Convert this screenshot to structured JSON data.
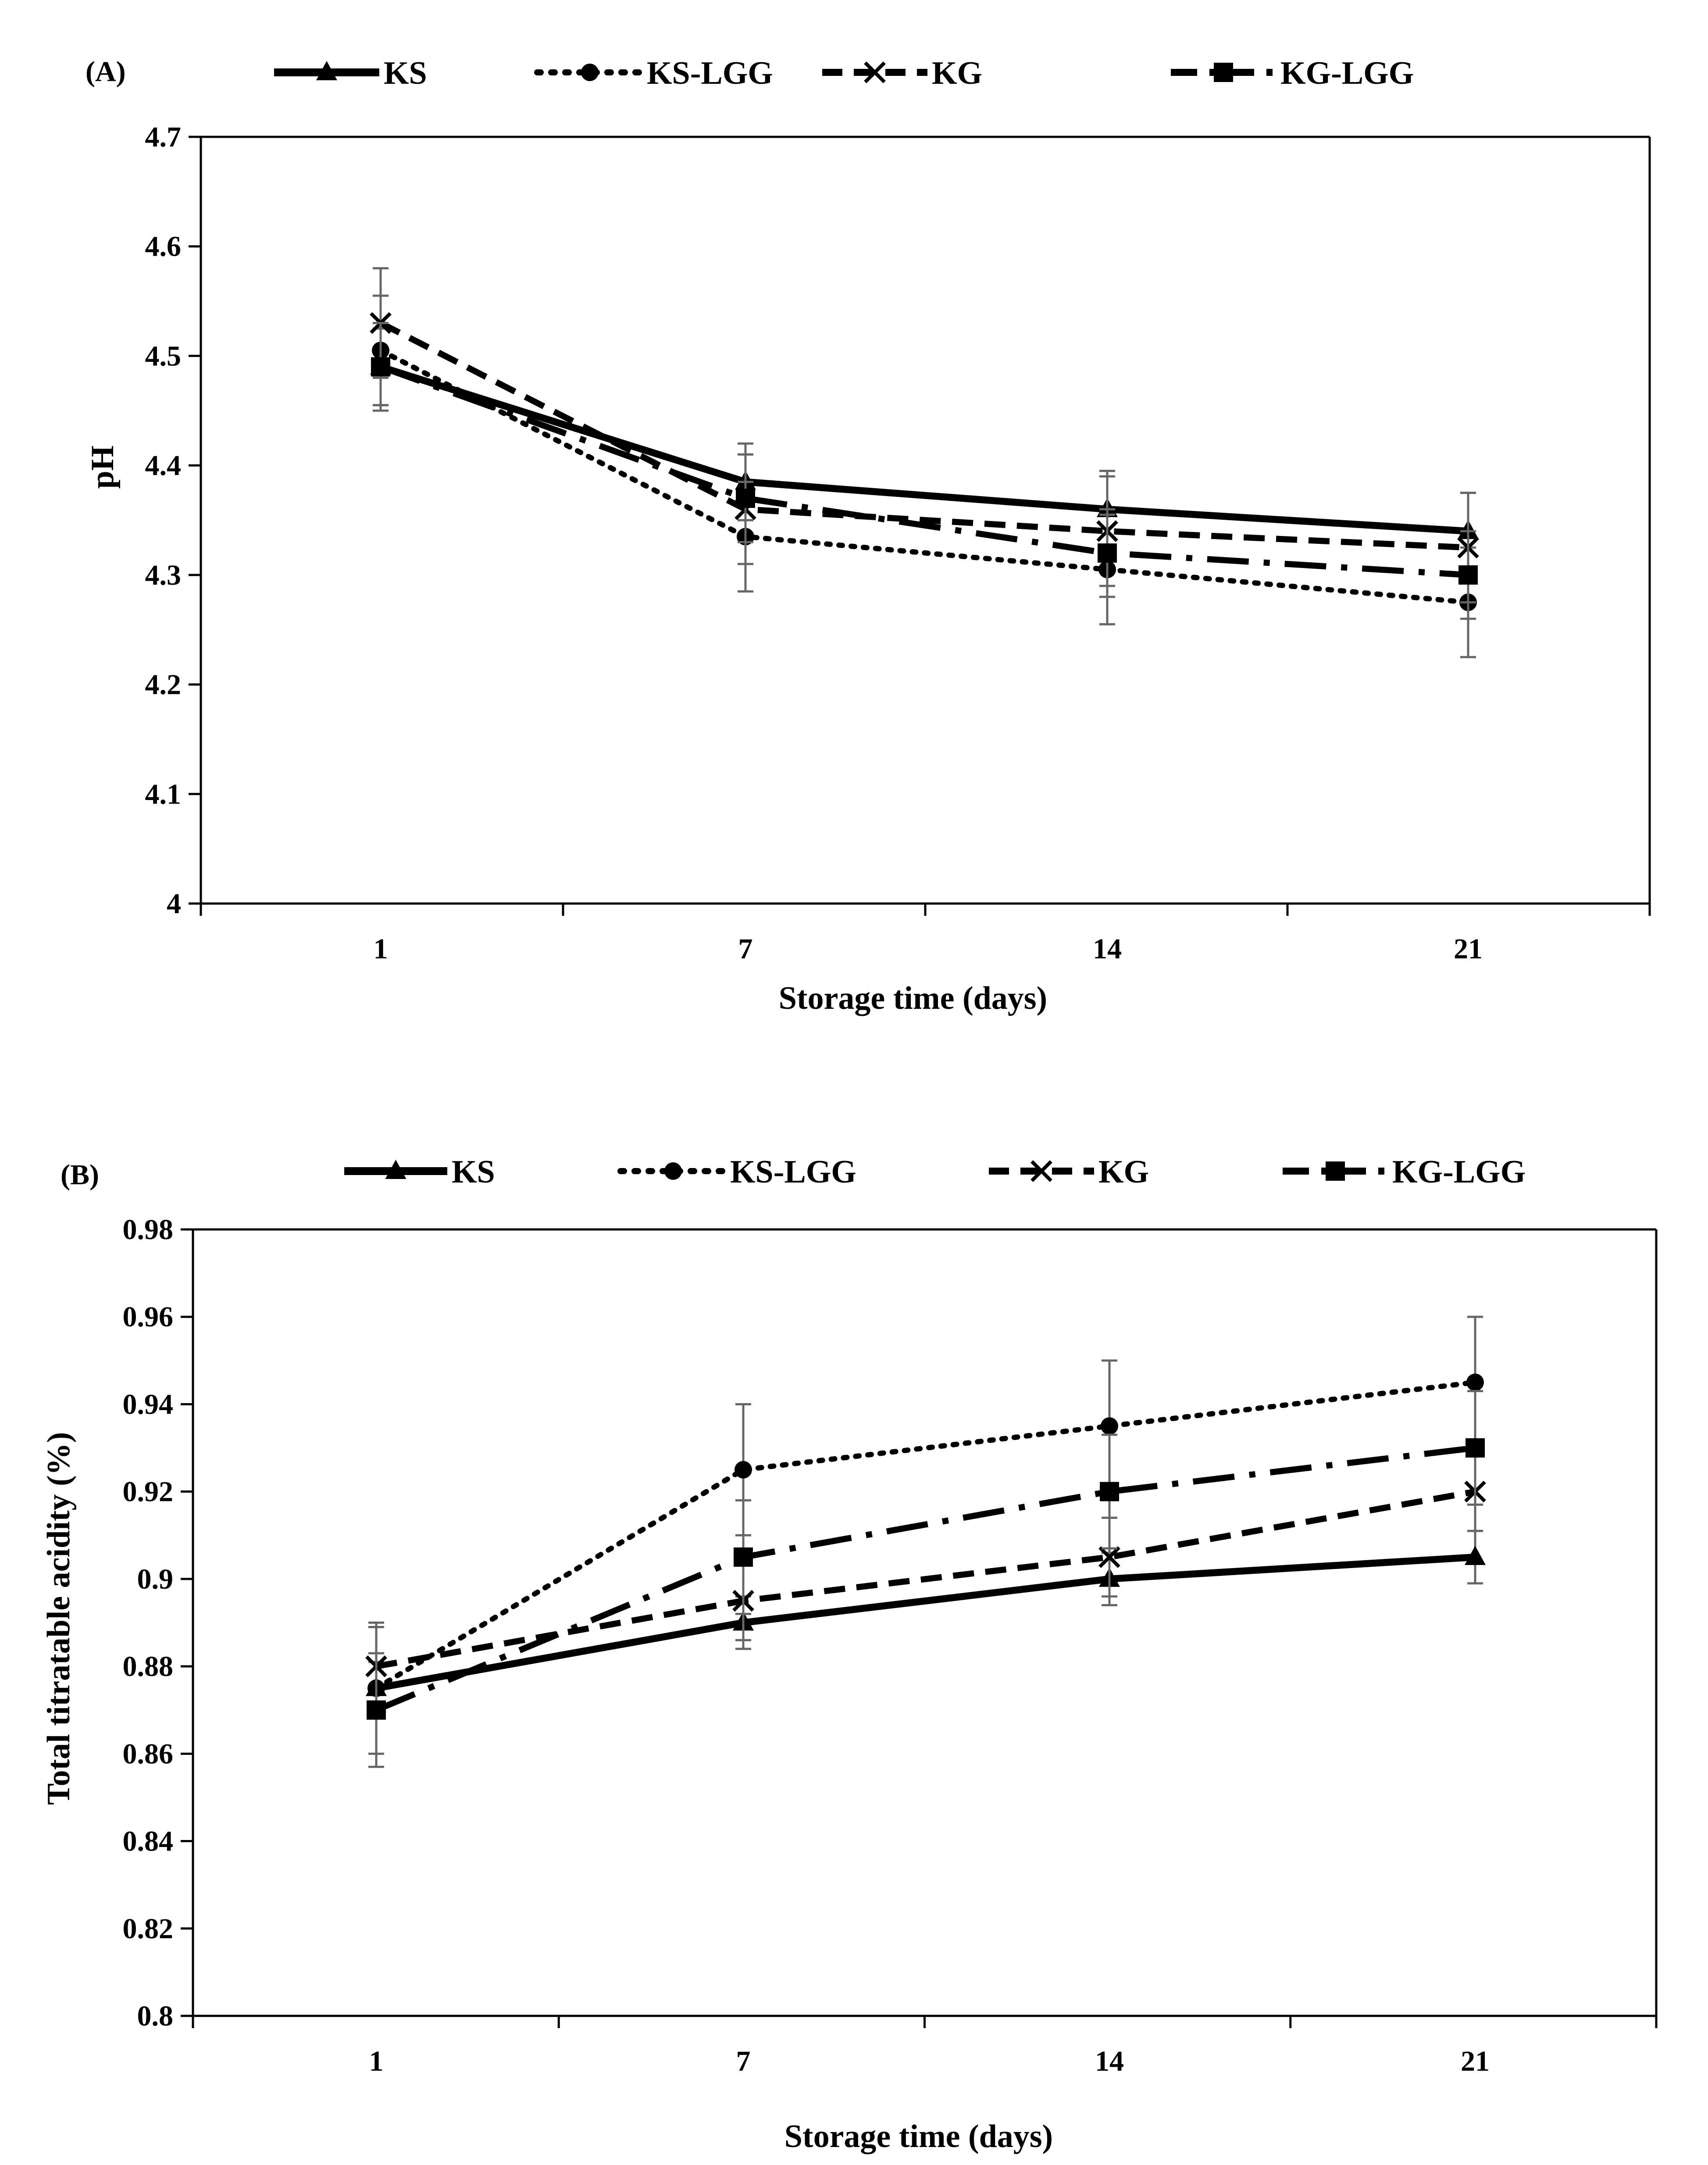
{
  "chart_data": [
    {
      "panel": "(A)",
      "type": "line",
      "xlabel": "Storage time (days)",
      "ylabel": "pH",
      "ylim": [
        4,
        4.7
      ],
      "yticks": [
        "4",
        "4.1",
        "4.2",
        "4.3",
        "4.4",
        "4.5",
        "4.6",
        "4.7"
      ],
      "categories": [
        "1",
        "7",
        "14",
        "21"
      ],
      "legend_position": "top",
      "series": [
        {
          "name": "KS",
          "marker": "triangle",
          "dash": "solid",
          "values": [
            4.49,
            4.385,
            4.36,
            4.34
          ],
          "err": [
            0.035,
            0.035,
            0.035,
            0.035
          ]
        },
        {
          "name": "KS-LGG",
          "marker": "circle",
          "dash": "dotted",
          "values": [
            4.505,
            4.335,
            4.305,
            4.275
          ],
          "err": [
            0.05,
            0.05,
            0.05,
            0.05
          ]
        },
        {
          "name": "KG",
          "marker": "x",
          "dash": "dashed",
          "values": [
            4.53,
            4.36,
            4.34,
            4.325
          ],
          "err": [
            0.05,
            0.05,
            0.05,
            0.05
          ]
        },
        {
          "name": "KG-LGG",
          "marker": "square",
          "dash": "dashdot",
          "values": [
            4.49,
            4.37,
            4.32,
            4.3
          ],
          "err": [
            0.04,
            0.04,
            0.04,
            0.04
          ]
        }
      ]
    },
    {
      "panel": "(B)",
      "type": "line",
      "xlabel": "Storage time (days)",
      "ylabel": "Total titratable acidity (%)",
      "ylim": [
        0.8,
        0.98
      ],
      "yticks": [
        "0.8",
        "0.82",
        "0.84",
        "0.86",
        "0.88",
        "0.9",
        "0.92",
        "0.94",
        "0.96",
        "0.98"
      ],
      "categories": [
        "1",
        "7",
        "14",
        "21"
      ],
      "legend_position": "top",
      "series": [
        {
          "name": "KS",
          "marker": "triangle",
          "dash": "solid",
          "values": [
            0.875,
            0.89,
            0.9,
            0.905
          ],
          "err": [
            0.006,
            0.006,
            0.006,
            0.006
          ]
        },
        {
          "name": "KS-LGG",
          "marker": "circle",
          "dash": "dotted",
          "values": [
            0.875,
            0.925,
            0.935,
            0.945
          ],
          "err": [
            0.015,
            0.015,
            0.015,
            0.015
          ]
        },
        {
          "name": "KG",
          "marker": "x",
          "dash": "dashed",
          "values": [
            0.88,
            0.895,
            0.905,
            0.92
          ],
          "err": [
            0.009,
            0.009,
            0.009,
            0.009
          ]
        },
        {
          "name": "KG-LGG",
          "marker": "square",
          "dash": "dashdot",
          "values": [
            0.87,
            0.905,
            0.92,
            0.93
          ],
          "err": [
            0.013,
            0.013,
            0.013,
            0.013
          ]
        }
      ]
    }
  ]
}
